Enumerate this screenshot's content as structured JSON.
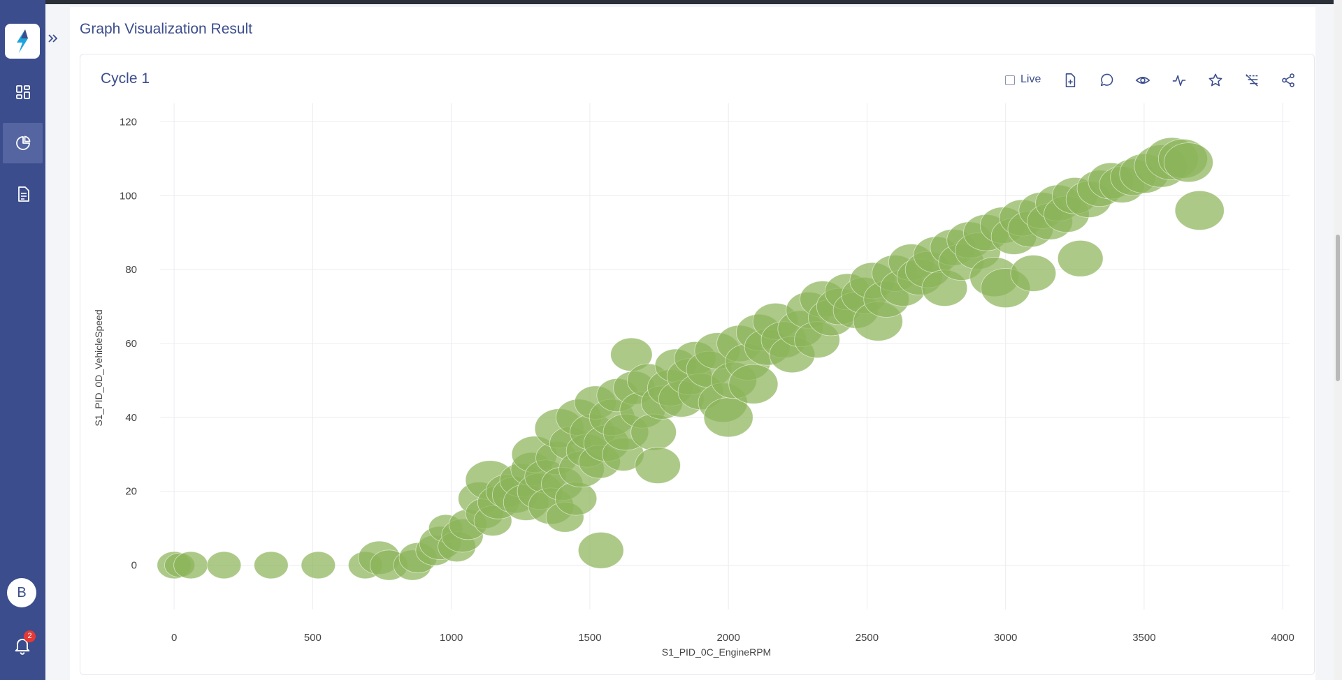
{
  "page": {
    "title": "Graph Visualization Result"
  },
  "sidebar": {
    "logo_icon": "lightning-logo-icon",
    "expand_icon": "double-chevron-right-icon",
    "items": [
      {
        "icon": "dashboard-icon"
      },
      {
        "icon": "pie-chart-icon",
        "active": true
      },
      {
        "icon": "document-icon"
      }
    ],
    "avatar_initial": "B",
    "notifications_count": "2",
    "color": "#3b4d8c"
  },
  "card": {
    "title": "Cycle 1",
    "live_label": "Live",
    "tools": [
      "file-add-icon",
      "comment-icon",
      "eye-icon",
      "pulse-icon",
      "star-icon",
      "filter-off-icon",
      "share-icon"
    ]
  },
  "chart_data": {
    "type": "scatter",
    "xlabel": "S1_PID_0C_EngineRPM",
    "ylabel": "S1_PID_0D_VehicleSpeed",
    "xlim": [
      -250,
      4050
    ],
    "ylim": [
      -12,
      125
    ],
    "xticks": [
      0,
      500,
      1000,
      1500,
      2000,
      2500,
      3000,
      3500,
      4000
    ],
    "yticks": [
      0,
      20,
      40,
      60,
      80,
      100,
      120
    ],
    "grid": true,
    "marker_color": "#8cb45a",
    "points": [
      {
        "x": 0,
        "y": 0,
        "s": 0.9
      },
      {
        "x": 20,
        "y": 0,
        "s": 0.8
      },
      {
        "x": 60,
        "y": 0,
        "s": 0.9
      },
      {
        "x": 180,
        "y": 0,
        "s": 0.9
      },
      {
        "x": 350,
        "y": 0,
        "s": 0.9
      },
      {
        "x": 520,
        "y": 0,
        "s": 0.9
      },
      {
        "x": 690,
        "y": 0,
        "s": 0.9
      },
      {
        "x": 740,
        "y": 2,
        "s": 1.1
      },
      {
        "x": 775,
        "y": 0,
        "s": 1.0
      },
      {
        "x": 860,
        "y": 0,
        "s": 1.0
      },
      {
        "x": 880,
        "y": 2,
        "s": 1.0
      },
      {
        "x": 940,
        "y": 4,
        "s": 1.0
      },
      {
        "x": 960,
        "y": 6,
        "s": 1.1
      },
      {
        "x": 980,
        "y": 10,
        "s": 0.9
      },
      {
        "x": 1020,
        "y": 5,
        "s": 1.0
      },
      {
        "x": 1040,
        "y": 8,
        "s": 1.1
      },
      {
        "x": 1060,
        "y": 11,
        "s": 1.0
      },
      {
        "x": 1100,
        "y": 18,
        "s": 1.1
      },
      {
        "x": 1120,
        "y": 14,
        "s": 1.0
      },
      {
        "x": 1140,
        "y": 23,
        "s": 1.3
      },
      {
        "x": 1150,
        "y": 12,
        "s": 1.0
      },
      {
        "x": 1170,
        "y": 17,
        "s": 1.1
      },
      {
        "x": 1200,
        "y": 20,
        "s": 1.1
      },
      {
        "x": 1230,
        "y": 19,
        "s": 1.2
      },
      {
        "x": 1250,
        "y": 23,
        "s": 1.1
      },
      {
        "x": 1270,
        "y": 17,
        "s": 1.2
      },
      {
        "x": 1290,
        "y": 26,
        "s": 1.1
      },
      {
        "x": 1300,
        "y": 30,
        "s": 1.2
      },
      {
        "x": 1320,
        "y": 20,
        "s": 1.2
      },
      {
        "x": 1340,
        "y": 24,
        "s": 1.1
      },
      {
        "x": 1360,
        "y": 16,
        "s": 1.2
      },
      {
        "x": 1380,
        "y": 29,
        "s": 1.1
      },
      {
        "x": 1390,
        "y": 37,
        "s": 1.3
      },
      {
        "x": 1400,
        "y": 22,
        "s": 1.1
      },
      {
        "x": 1410,
        "y": 13,
        "s": 1.0
      },
      {
        "x": 1430,
        "y": 33,
        "s": 1.1
      },
      {
        "x": 1450,
        "y": 18,
        "s": 1.1
      },
      {
        "x": 1460,
        "y": 40,
        "s": 1.2
      },
      {
        "x": 1470,
        "y": 26,
        "s": 1.2
      },
      {
        "x": 1490,
        "y": 31,
        "s": 1.1
      },
      {
        "x": 1510,
        "y": 36,
        "s": 1.2
      },
      {
        "x": 1520,
        "y": 44,
        "s": 1.1
      },
      {
        "x": 1535,
        "y": 28,
        "s": 1.1
      },
      {
        "x": 1540,
        "y": 4,
        "s": 1.2
      },
      {
        "x": 1560,
        "y": 33,
        "s": 1.2
      },
      {
        "x": 1580,
        "y": 40,
        "s": 1.2
      },
      {
        "x": 1600,
        "y": 46,
        "s": 1.1
      },
      {
        "x": 1620,
        "y": 30,
        "s": 1.1
      },
      {
        "x": 1630,
        "y": 36,
        "s": 1.2
      },
      {
        "x": 1650,
        "y": 57,
        "s": 1.1
      },
      {
        "x": 1660,
        "y": 48,
        "s": 1.1
      },
      {
        "x": 1690,
        "y": 42,
        "s": 1.2
      },
      {
        "x": 1710,
        "y": 50,
        "s": 1.1
      },
      {
        "x": 1730,
        "y": 36,
        "s": 1.2
      },
      {
        "x": 1745,
        "y": 27,
        "s": 1.2
      },
      {
        "x": 1760,
        "y": 44,
        "s": 1.1
      },
      {
        "x": 1790,
        "y": 48,
        "s": 1.2
      },
      {
        "x": 1810,
        "y": 54,
        "s": 1.1
      },
      {
        "x": 1830,
        "y": 45,
        "s": 1.2
      },
      {
        "x": 1860,
        "y": 51,
        "s": 1.2
      },
      {
        "x": 1880,
        "y": 56,
        "s": 1.1
      },
      {
        "x": 1900,
        "y": 47,
        "s": 1.2
      },
      {
        "x": 1930,
        "y": 53,
        "s": 1.2
      },
      {
        "x": 1960,
        "y": 58,
        "s": 1.2
      },
      {
        "x": 1980,
        "y": 44,
        "s": 1.3
      },
      {
        "x": 2000,
        "y": 40,
        "s": 1.3
      },
      {
        "x": 2020,
        "y": 50,
        "s": 1.2
      },
      {
        "x": 2040,
        "y": 60,
        "s": 1.2
      },
      {
        "x": 2070,
        "y": 55,
        "s": 1.2
      },
      {
        "x": 2090,
        "y": 49,
        "s": 1.3
      },
      {
        "x": 2110,
        "y": 63,
        "s": 1.2
      },
      {
        "x": 2140,
        "y": 59,
        "s": 1.2
      },
      {
        "x": 2170,
        "y": 66,
        "s": 1.2
      },
      {
        "x": 2200,
        "y": 61,
        "s": 1.2
      },
      {
        "x": 2230,
        "y": 57,
        "s": 1.2
      },
      {
        "x": 2260,
        "y": 64,
        "s": 1.2
      },
      {
        "x": 2290,
        "y": 69,
        "s": 1.2
      },
      {
        "x": 2320,
        "y": 61,
        "s": 1.2
      },
      {
        "x": 2340,
        "y": 72,
        "s": 1.2
      },
      {
        "x": 2370,
        "y": 67,
        "s": 1.2
      },
      {
        "x": 2400,
        "y": 70,
        "s": 1.2
      },
      {
        "x": 2430,
        "y": 74,
        "s": 1.2
      },
      {
        "x": 2460,
        "y": 69,
        "s": 1.2
      },
      {
        "x": 2490,
        "y": 73,
        "s": 1.2
      },
      {
        "x": 2520,
        "y": 77,
        "s": 1.2
      },
      {
        "x": 2540,
        "y": 66,
        "s": 1.3
      },
      {
        "x": 2570,
        "y": 72,
        "s": 1.2
      },
      {
        "x": 2600,
        "y": 79,
        "s": 1.2
      },
      {
        "x": 2630,
        "y": 75,
        "s": 1.2
      },
      {
        "x": 2660,
        "y": 82,
        "s": 1.2
      },
      {
        "x": 2690,
        "y": 78,
        "s": 1.2
      },
      {
        "x": 2720,
        "y": 80,
        "s": 1.2
      },
      {
        "x": 2750,
        "y": 84,
        "s": 1.2
      },
      {
        "x": 2780,
        "y": 75,
        "s": 1.2
      },
      {
        "x": 2810,
        "y": 86,
        "s": 1.2
      },
      {
        "x": 2840,
        "y": 82,
        "s": 1.2
      },
      {
        "x": 2870,
        "y": 88,
        "s": 1.2
      },
      {
        "x": 2900,
        "y": 85,
        "s": 1.2
      },
      {
        "x": 2930,
        "y": 90,
        "s": 1.2
      },
      {
        "x": 2960,
        "y": 78,
        "s": 1.3
      },
      {
        "x": 2990,
        "y": 92,
        "s": 1.2
      },
      {
        "x": 3000,
        "y": 75,
        "s": 1.3
      },
      {
        "x": 3030,
        "y": 89,
        "s": 1.2
      },
      {
        "x": 3060,
        "y": 94,
        "s": 1.2
      },
      {
        "x": 3090,
        "y": 91,
        "s": 1.2
      },
      {
        "x": 3100,
        "y": 79,
        "s": 1.2
      },
      {
        "x": 3130,
        "y": 96,
        "s": 1.2
      },
      {
        "x": 3160,
        "y": 93,
        "s": 1.2
      },
      {
        "x": 3190,
        "y": 98,
        "s": 1.2
      },
      {
        "x": 3220,
        "y": 95,
        "s": 1.2
      },
      {
        "x": 3250,
        "y": 100,
        "s": 1.2
      },
      {
        "x": 3270,
        "y": 83,
        "s": 1.2
      },
      {
        "x": 3300,
        "y": 99,
        "s": 1.2
      },
      {
        "x": 3340,
        "y": 102,
        "s": 1.2
      },
      {
        "x": 3380,
        "y": 104,
        "s": 1.2
      },
      {
        "x": 3420,
        "y": 103,
        "s": 1.2
      },
      {
        "x": 3460,
        "y": 105,
        "s": 1.2
      },
      {
        "x": 3500,
        "y": 106,
        "s": 1.3
      },
      {
        "x": 3560,
        "y": 108,
        "s": 1.4
      },
      {
        "x": 3600,
        "y": 110,
        "s": 1.4
      },
      {
        "x": 3640,
        "y": 110,
        "s": 1.3
      },
      {
        "x": 3660,
        "y": 109,
        "s": 1.3
      },
      {
        "x": 3700,
        "y": 96,
        "s": 1.3
      }
    ]
  }
}
